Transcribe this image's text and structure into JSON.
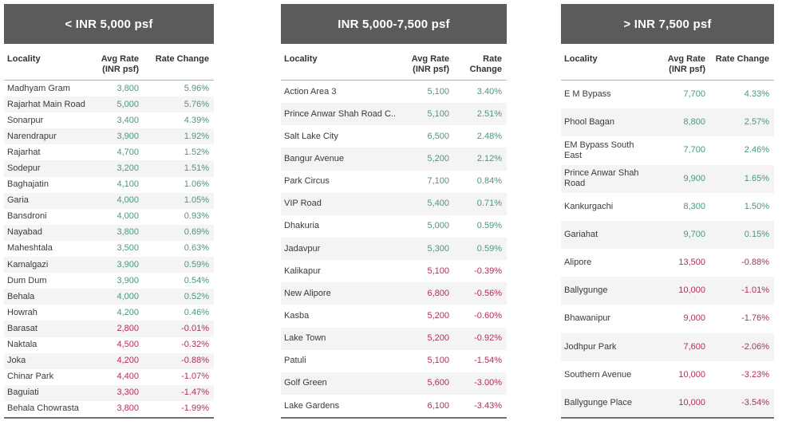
{
  "colors": {
    "positive": "#4a9878",
    "negative": "#b02f56",
    "header_bg": "#5b5b5b",
    "band": "#f4f4f4"
  },
  "tables": [
    {
      "title": "< INR 5,000 psf",
      "columns": {
        "locality": "Locality",
        "avg_rate": "Avg Rate (INR psf)",
        "rate_change": "Rate Change"
      },
      "rows": [
        {
          "locality": "Madhyam Gram",
          "avg_rate": "3,800",
          "change": "5.96%"
        },
        {
          "locality": "Rajarhat Main Road",
          "avg_rate": "5,000",
          "change": "5.76%"
        },
        {
          "locality": "Sonarpur",
          "avg_rate": "3,400",
          "change": "4.39%"
        },
        {
          "locality": "Narendrapur",
          "avg_rate": "3,900",
          "change": "1.92%"
        },
        {
          "locality": "Rajarhat",
          "avg_rate": "4,700",
          "change": "1.52%"
        },
        {
          "locality": "Sodepur",
          "avg_rate": "3,200",
          "change": "1.51%"
        },
        {
          "locality": "Baghajatin",
          "avg_rate": "4,100",
          "change": "1.06%"
        },
        {
          "locality": "Garia",
          "avg_rate": "4,000",
          "change": "1.05%"
        },
        {
          "locality": "Bansdroni",
          "avg_rate": "4,000",
          "change": "0.93%"
        },
        {
          "locality": "Nayabad",
          "avg_rate": "3,800",
          "change": "0.69%"
        },
        {
          "locality": "Maheshtala",
          "avg_rate": "3,500",
          "change": "0.63%"
        },
        {
          "locality": "Kamalgazi",
          "avg_rate": "3,900",
          "change": "0.59%"
        },
        {
          "locality": "Dum Dum",
          "avg_rate": "3,900",
          "change": "0.54%"
        },
        {
          "locality": "Behala",
          "avg_rate": "4,000",
          "change": "0.52%"
        },
        {
          "locality": "Howrah",
          "avg_rate": "4,200",
          "change": "0.46%"
        },
        {
          "locality": "Barasat",
          "avg_rate": "2,800",
          "change": "-0.01%"
        },
        {
          "locality": "Naktala",
          "avg_rate": "4,500",
          "change": "-0.32%"
        },
        {
          "locality": "Joka",
          "avg_rate": "4,200",
          "change": "-0.88%"
        },
        {
          "locality": "Chinar Park",
          "avg_rate": "4,400",
          "change": "-1.07%"
        },
        {
          "locality": "Baguiati",
          "avg_rate": "3,300",
          "change": "-1.47%"
        },
        {
          "locality": "Behala Chowrasta",
          "avg_rate": "3,800",
          "change": "-1.99%"
        }
      ]
    },
    {
      "title": "INR 5,000-7,500 psf",
      "columns": {
        "locality": "Locality",
        "avg_rate": "Avg Rate (INR psf)",
        "rate_change": "Rate Change"
      },
      "rows": [
        {
          "locality": "Action Area 3",
          "avg_rate": "5,100",
          "change": "3.40%"
        },
        {
          "locality": "Prince Anwar Shah Road C..",
          "avg_rate": "5,100",
          "change": "2.51%"
        },
        {
          "locality": "Salt Lake City",
          "avg_rate": "6,500",
          "change": "2.48%"
        },
        {
          "locality": "Bangur Avenue",
          "avg_rate": "5,200",
          "change": "2.12%"
        },
        {
          "locality": "Park Circus",
          "avg_rate": "7,100",
          "change": "0.84%"
        },
        {
          "locality": "VIP Road",
          "avg_rate": "5,400",
          "change": "0.71%"
        },
        {
          "locality": "Dhakuria",
          "avg_rate": "5,000",
          "change": "0.59%"
        },
        {
          "locality": "Jadavpur",
          "avg_rate": "5,300",
          "change": "0.59%"
        },
        {
          "locality": "Kalikapur",
          "avg_rate": "5,100",
          "change": "-0.39%"
        },
        {
          "locality": "New Alipore",
          "avg_rate": "6,800",
          "change": "-0.56%"
        },
        {
          "locality": "Kasba",
          "avg_rate": "5,200",
          "change": "-0.60%"
        },
        {
          "locality": "Lake Town",
          "avg_rate": "5,200",
          "change": "-0.92%"
        },
        {
          "locality": "Patuli",
          "avg_rate": "5,100",
          "change": "-1.54%"
        },
        {
          "locality": "Golf Green",
          "avg_rate": "5,600",
          "change": "-3.00%"
        },
        {
          "locality": "Lake Gardens",
          "avg_rate": "6,100",
          "change": "-3.43%"
        }
      ]
    },
    {
      "title": "> INR 7,500 psf",
      "columns": {
        "locality": "Locality",
        "avg_rate": "Avg Rate (INR psf)",
        "rate_change": "Rate Change"
      },
      "rows": [
        {
          "locality": "E M Bypass",
          "avg_rate": "7,700",
          "change": "4.33%"
        },
        {
          "locality": "Phool Bagan",
          "avg_rate": "8,800",
          "change": "2.57%"
        },
        {
          "locality": "EM Bypass South East",
          "avg_rate": "7,700",
          "change": "2.46%"
        },
        {
          "locality": "Prince Anwar Shah Road",
          "avg_rate": "9,900",
          "change": "1.65%"
        },
        {
          "locality": "Kankurgachi",
          "avg_rate": "8,300",
          "change": "1.50%"
        },
        {
          "locality": "Gariahat",
          "avg_rate": "9,700",
          "change": "0.15%"
        },
        {
          "locality": "Alipore",
          "avg_rate": "13,500",
          "change": "-0.88%"
        },
        {
          "locality": "Ballygunge",
          "avg_rate": "10,000",
          "change": "-1.01%"
        },
        {
          "locality": "Bhawanipur",
          "avg_rate": "9,000",
          "change": "-1.76%"
        },
        {
          "locality": "Jodhpur Park",
          "avg_rate": "7,600",
          "change": "-2.06%"
        },
        {
          "locality": "Southern Avenue",
          "avg_rate": "10,000",
          "change": "-3.23%"
        },
        {
          "locality": "Ballygunge Place",
          "avg_rate": "10,000",
          "change": "-3.54%"
        }
      ]
    }
  ]
}
